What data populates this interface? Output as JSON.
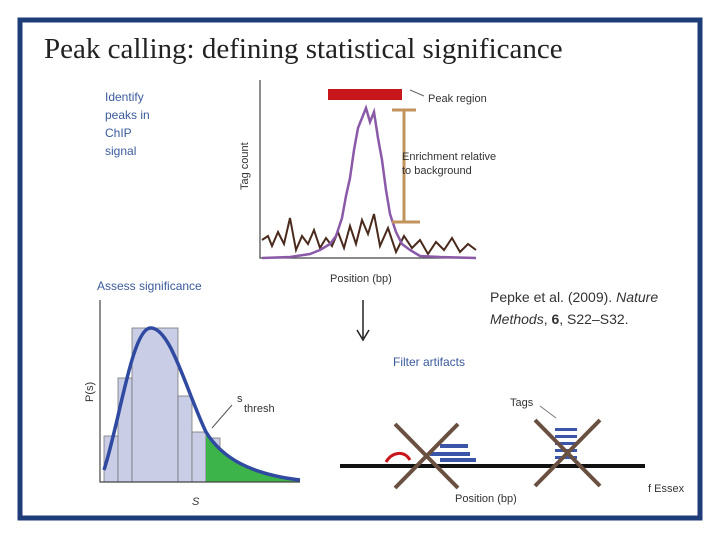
{
  "slide": {
    "title": "Peak calling: defining statistical significance",
    "panel_identify": {
      "caption": [
        "Identify",
        "peaks in",
        "ChIP",
        "signal"
      ],
      "peak_region": "Peak region",
      "y_label": "Tag count",
      "enrichment": [
        "Enrichment relative",
        "to background"
      ],
      "x_label": "Position (bp)"
    },
    "panel_assess": {
      "caption": "Assess significance",
      "y_label": "P(s)",
      "threshold": "s",
      "threshold_sub": "thresh",
      "x_label": "S"
    },
    "panel_filter": {
      "caption": "Filter artifacts",
      "tags": "Tags",
      "x_label": "Position (bp)",
      "credit": "f Essex"
    },
    "citation": {
      "authors": "Pepke et al. (2009). ",
      "journal_1": "Nature",
      "journal_2": "Methods",
      "sep1": ", ",
      "volume": "6",
      "pages": ", S22–S32."
    }
  }
}
